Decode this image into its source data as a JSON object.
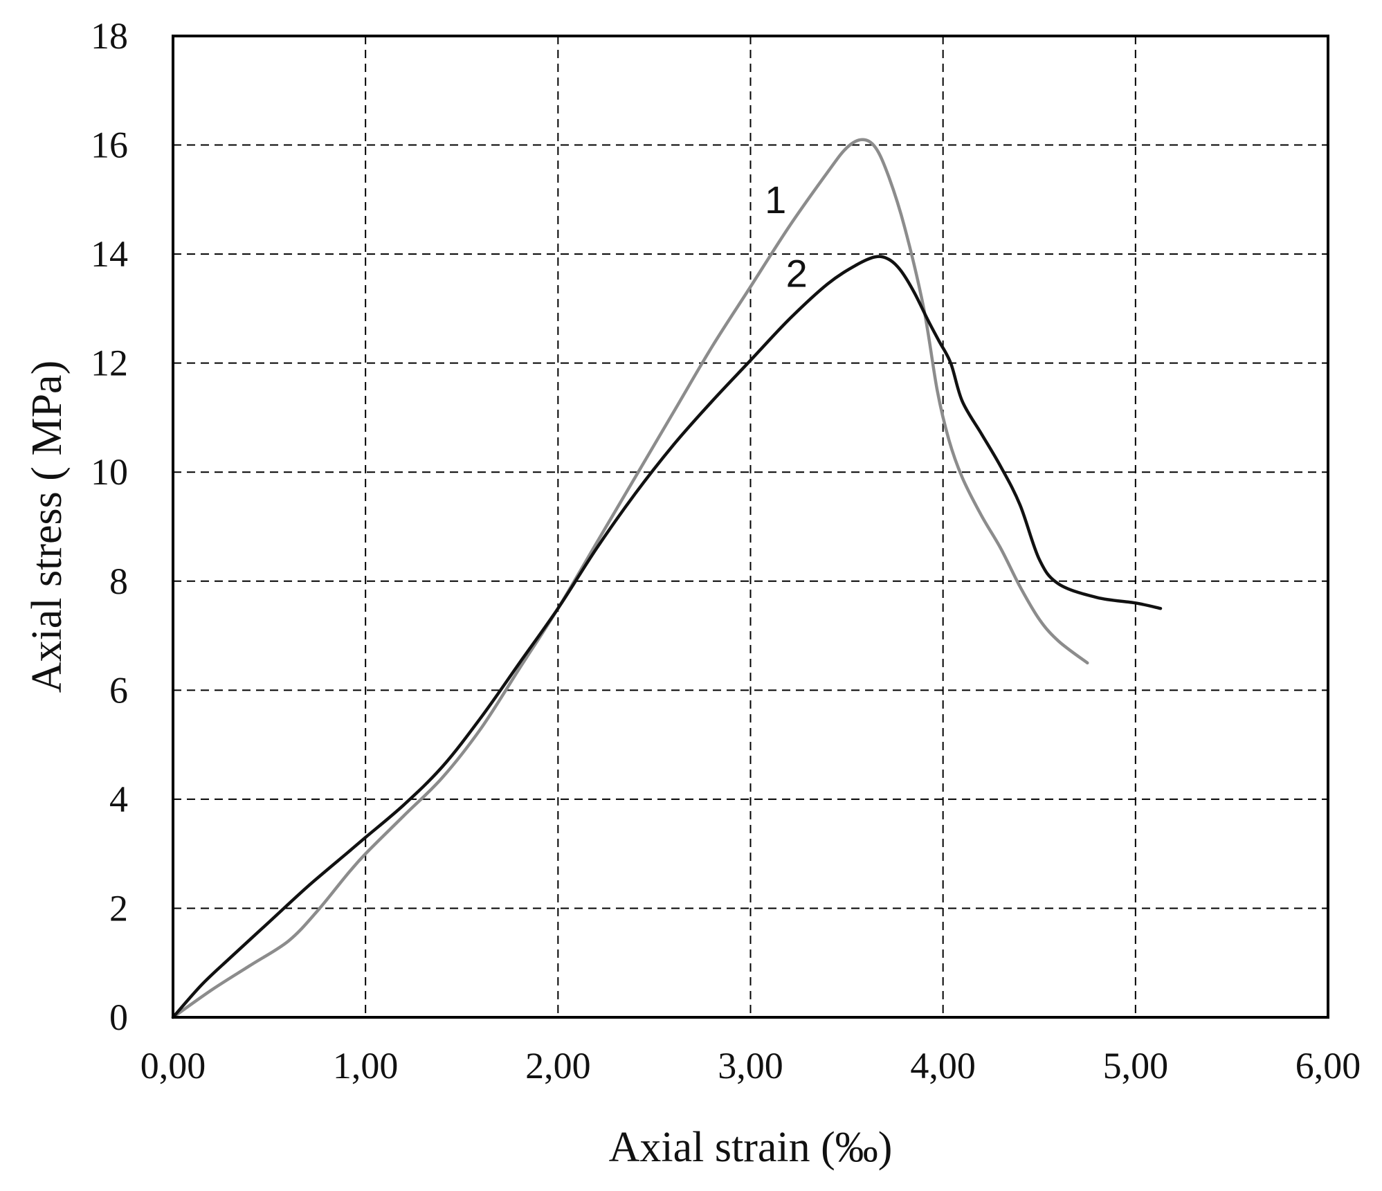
{
  "chart_data": {
    "type": "line",
    "xlabel": "Axial strain (‰)",
    "ylabel": "Axial stress ( MPa)",
    "xlim": [
      0,
      6
    ],
    "ylim": [
      0,
      18
    ],
    "x_ticks": [
      0,
      1,
      2,
      3,
      4,
      5,
      6
    ],
    "x_tick_labels": [
      "0,00",
      "1,00",
      "2,00",
      "3,00",
      "4,00",
      "5,00",
      "6,00"
    ],
    "y_ticks": [
      0,
      2,
      4,
      6,
      8,
      10,
      12,
      14,
      16,
      18
    ],
    "y_tick_labels": [
      "0",
      "2",
      "4",
      "6",
      "8",
      "10",
      "12",
      "14",
      "16",
      "18"
    ],
    "grid": true,
    "legend": "none",
    "series": [
      {
        "label": "1",
        "color": "#8c8c8c",
        "label_at": [
          3.13,
          14.75
        ],
        "x": [
          0,
          0.2,
          0.4,
          0.6,
          0.75,
          0.9,
          1.0,
          1.2,
          1.4,
          1.6,
          1.8,
          2.0,
          2.2,
          2.4,
          2.6,
          2.8,
          3.0,
          3.2,
          3.4,
          3.5,
          3.58,
          3.65,
          3.72,
          3.8,
          3.9,
          3.97,
          4.03,
          4.1,
          4.2,
          4.3,
          4.4,
          4.5,
          4.6,
          4.75
        ],
        "y": [
          0,
          0.5,
          0.95,
          1.4,
          1.95,
          2.6,
          3.0,
          3.7,
          4.4,
          5.3,
          6.4,
          7.5,
          8.7,
          9.9,
          11.1,
          12.3,
          13.4,
          14.5,
          15.5,
          15.95,
          16.1,
          15.95,
          15.4,
          14.5,
          13.0,
          11.5,
          10.6,
          9.9,
          9.2,
          8.6,
          7.9,
          7.3,
          6.9,
          6.5
        ]
      },
      {
        "label": "2",
        "color": "#111111",
        "label_at": [
          3.24,
          13.4
        ],
        "x": [
          0,
          0.15,
          0.3,
          0.5,
          0.7,
          0.9,
          1.0,
          1.2,
          1.4,
          1.6,
          1.8,
          2.0,
          2.2,
          2.4,
          2.6,
          2.8,
          3.0,
          3.2,
          3.4,
          3.55,
          3.65,
          3.72,
          3.78,
          3.85,
          3.92,
          3.98,
          4.04,
          4.1,
          4.2,
          4.3,
          4.4,
          4.5,
          4.6,
          4.8,
          5.0,
          5.13
        ],
        "y": [
          0,
          0.6,
          1.1,
          1.75,
          2.4,
          3.0,
          3.3,
          3.9,
          4.6,
          5.5,
          6.5,
          7.5,
          8.6,
          9.6,
          10.5,
          11.3,
          12.05,
          12.8,
          13.45,
          13.8,
          13.95,
          13.9,
          13.7,
          13.3,
          12.8,
          12.4,
          12.0,
          11.3,
          10.7,
          10.1,
          9.4,
          8.4,
          7.95,
          7.7,
          7.6,
          7.5
        ]
      }
    ]
  }
}
